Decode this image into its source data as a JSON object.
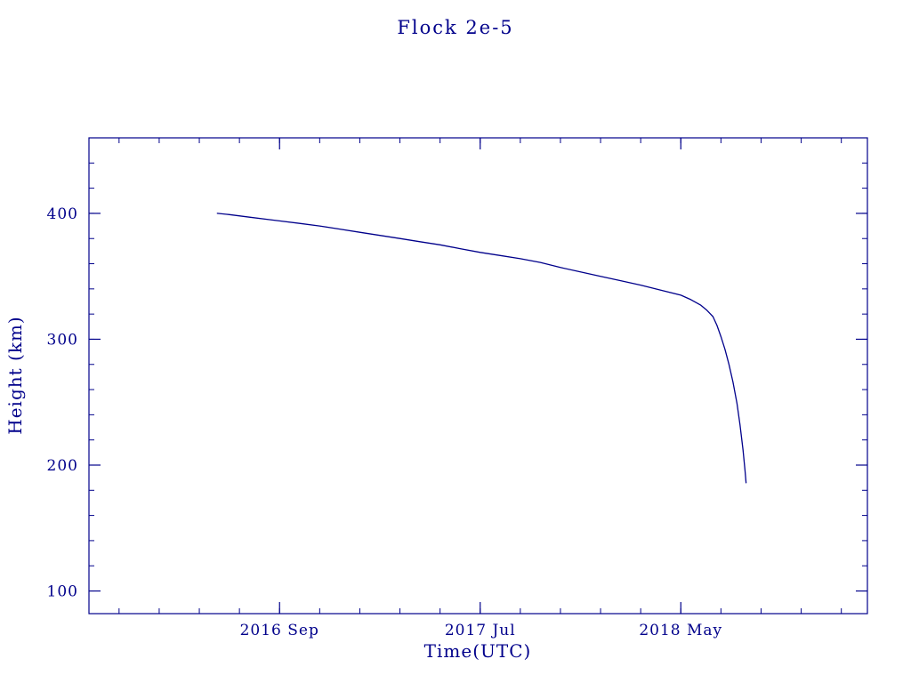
{
  "colors": {
    "accent": "#00008B",
    "background": "#FFFFFF"
  },
  "chart_data": {
    "type": "line",
    "title": "Flock 2e-5",
    "xlabel": "Time(UTC)",
    "ylabel": "Height (km)",
    "x_unit": "months since 2016-01",
    "xlim": [
      -1.5,
      37.3
    ],
    "ylim": [
      82,
      460
    ],
    "grid": false,
    "legend": "none",
    "line_color": "#00008B",
    "x_ticks": [
      {
        "value": 8,
        "label": "2016 Sep"
      },
      {
        "value": 18,
        "label": "2017 Jul"
      },
      {
        "value": 28,
        "label": "2018 May"
      }
    ],
    "x_minor_step": 2,
    "y_ticks": [
      {
        "value": 100,
        "label": "100"
      },
      {
        "value": 200,
        "label": "200"
      },
      {
        "value": 300,
        "label": "300"
      },
      {
        "value": 400,
        "label": "400"
      }
    ],
    "y_minor_step": 20,
    "series": [
      {
        "name": "Flock 2e-5 height",
        "x": [
          4.9,
          5.5,
          6.5,
          7.5,
          8,
          9,
          10,
          11,
          12,
          13,
          14,
          15,
          16,
          17,
          18,
          19,
          20,
          21,
          22,
          23,
          24,
          25,
          26,
          27,
          28,
          28.5,
          29,
          29.3,
          29.6,
          29.8,
          30,
          30.2,
          30.4,
          30.6,
          30.8,
          30.95,
          31.1,
          31.2,
          31.25
        ],
        "y": [
          400,
          399,
          397,
          395,
          394,
          392,
          390,
          387.5,
          385,
          382.5,
          380,
          377.5,
          375,
          372,
          369,
          366.5,
          364,
          361,
          357,
          353.5,
          350,
          346.5,
          343,
          339,
          335,
          331.5,
          327,
          323,
          318,
          311,
          302,
          292,
          280,
          266,
          249,
          232,
          212,
          196,
          186
        ]
      }
    ]
  }
}
